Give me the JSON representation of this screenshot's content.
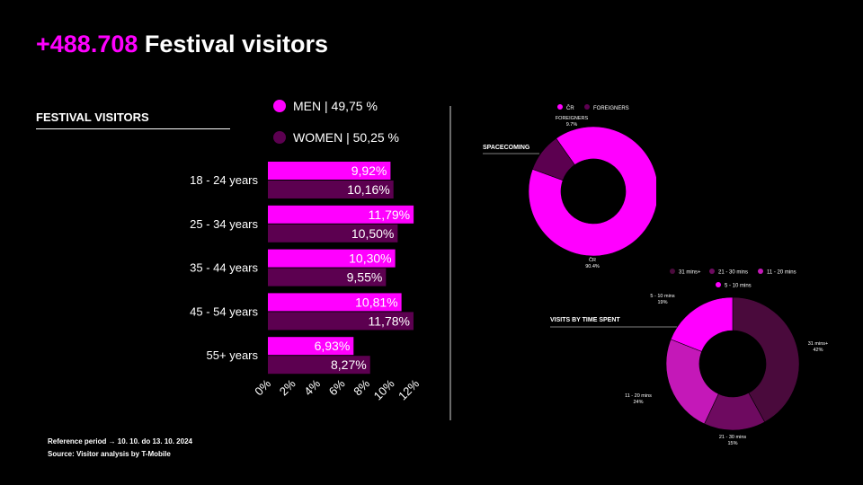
{
  "header": {
    "highlight": "+488.708",
    "title": "Festival visitors"
  },
  "section_title": "FESTIVAL VISITORS",
  "colors": {
    "men": "#ff00ff",
    "women": "#5c0050",
    "background": "#000000"
  },
  "gender_legend": [
    {
      "label": "MEN | 49,75 %",
      "color": "#ff00ff"
    },
    {
      "label": "WOMEN | 50,25 %",
      "color": "#5c0050"
    }
  ],
  "footer": {
    "reference": "Reference period → 10. 10. do 13. 10. 2024",
    "source": "Source: Visitor analysis by T-Mobile"
  },
  "chart_data": [
    {
      "type": "bar",
      "orientation": "horizontal",
      "title": "FESTIVAL VISITORS",
      "categories": [
        "18 - 24 years",
        "25 - 34 years",
        "35 - 44 years",
        "45 - 54 years",
        "55+ years"
      ],
      "series": [
        {
          "name": "MEN",
          "color": "#ff00ff",
          "values": [
            9.92,
            11.79,
            10.3,
            10.81,
            6.93
          ],
          "labels": [
            "9,92%",
            "11,79%",
            "10,30%",
            "10,81%",
            "6,93%"
          ]
        },
        {
          "name": "WOMEN",
          "color": "#5c0050",
          "values": [
            10.16,
            10.5,
            9.55,
            11.78,
            8.27
          ],
          "labels": [
            "10,16%",
            "10,50%",
            "9,55%",
            "11,78%",
            "8,27%"
          ]
        }
      ],
      "xlim": [
        0,
        12
      ],
      "xticks": [
        "0%",
        "2%",
        "4%",
        "6%",
        "8%",
        "10%",
        "12%"
      ],
      "grid": false
    },
    {
      "type": "pie",
      "style": "donut",
      "title": "SPACECOMING",
      "legend": {
        "position": "top",
        "entries": [
          {
            "label": "ČR",
            "color": "#ff00ff"
          },
          {
            "label": "FOREIGNERS",
            "color": "#5c0050"
          }
        ]
      },
      "slices": [
        {
          "label": "ČR",
          "value": 90.4,
          "value_label": "90.4%",
          "color": "#ff00ff"
        },
        {
          "label": "FOREIGNERS",
          "value": 9.7,
          "value_label": "9.7%",
          "color": "#5c0050"
        }
      ]
    },
    {
      "type": "pie",
      "style": "donut",
      "title": "VISITS BY TIME SPENT",
      "legend": {
        "position": "top",
        "entries": [
          {
            "label": "31 mins+",
            "color": "#4a0a3c"
          },
          {
            "label": "21 - 30 mins",
            "color": "#6e0a60"
          },
          {
            "label": "11 - 20 mins",
            "color": "#c418b8"
          },
          {
            "label": "5 - 10 mins",
            "color": "#ff00ff"
          }
        ]
      },
      "slices": [
        {
          "label": "31 mins+",
          "value": 42,
          "value_label": "42%",
          "color": "#4a0a3c"
        },
        {
          "label": "21 - 30 mins",
          "value": 15,
          "value_label": "15%",
          "color": "#6e0a60"
        },
        {
          "label": "11 - 20 mins",
          "value": 24,
          "value_label": "24%",
          "color": "#c418b8"
        },
        {
          "label": "5 - 10 mins",
          "value": 19,
          "value_label": "19%",
          "color": "#ff00ff"
        }
      ]
    }
  ]
}
